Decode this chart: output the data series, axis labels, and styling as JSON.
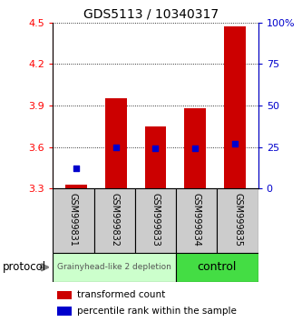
{
  "title": "GDS5113 / 10340317",
  "samples": [
    "GSM999831",
    "GSM999832",
    "GSM999833",
    "GSM999834",
    "GSM999835"
  ],
  "transformed_counts": [
    3.33,
    3.95,
    3.75,
    3.88,
    4.47
  ],
  "percentile_ranks": [
    12,
    25,
    24,
    24,
    27
  ],
  "ylim": [
    3.3,
    4.5
  ],
  "y_ticks": [
    3.3,
    3.6,
    3.9,
    4.2,
    4.5
  ],
  "y2_ticks": [
    0,
    25,
    50,
    75,
    100
  ],
  "y2_tick_labels": [
    "0",
    "25",
    "50",
    "75",
    "100%"
  ],
  "bar_color": "#cc0000",
  "dot_color": "#0000cc",
  "group1_color": "#ccffcc",
  "group2_color": "#44dd44",
  "group1_label": "Grainyhead-like 2 depletion",
  "group2_label": "control",
  "group1_samples": [
    0,
    1,
    2
  ],
  "group2_samples": [
    3,
    4
  ],
  "legend_bar_label": "transformed count",
  "legend_dot_label": "percentile rank within the sample",
  "protocol_label": "protocol",
  "bar_bottom": 3.3,
  "bar_width": 0.55
}
